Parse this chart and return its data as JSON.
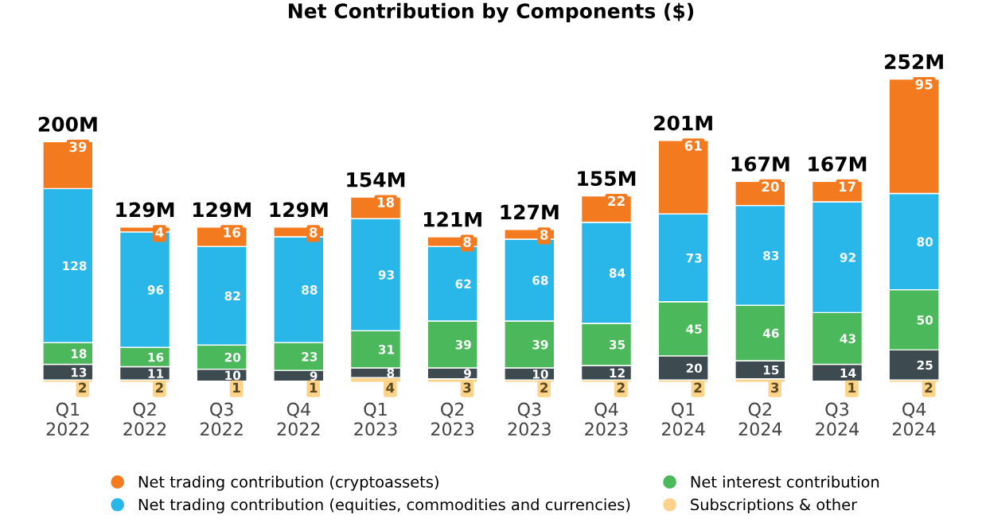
{
  "chart_data": {
    "type": "bar",
    "title": "Net Contribution by Components ($)",
    "categories": [
      "Q1\n2022",
      "Q2\n2022",
      "Q3\n2022",
      "Q4\n2022",
      "Q1\n2023",
      "Q2\n2023",
      "Q3\n2023",
      "Q4\n2023",
      "Q1\n2024",
      "Q2\n2024",
      "Q3\n2024",
      "Q4\n2024"
    ],
    "stacked": true,
    "data_labels": true,
    "legend": "bottom",
    "grid": false,
    "tick_labels": "x",
    "series": [
      {
        "name": "Subscriptions & other",
        "color": "#fdd38a",
        "values": [
          2,
          2,
          1,
          1,
          4,
          3,
          2,
          2,
          2,
          3,
          1,
          2
        ]
      },
      {
        "color": "#3d4a50",
        "values": [
          13,
          11,
          10,
          9,
          8,
          9,
          10,
          12,
          20,
          15,
          14,
          25
        ]
      },
      {
        "name": "Net interest contribution",
        "color": "#4cb85c",
        "values": [
          18,
          16,
          20,
          23,
          31,
          39,
          39,
          35,
          45,
          46,
          43,
          50
        ]
      },
      {
        "name": "Net trading contribution (equities, commodities and currencies)",
        "color": "#29b6e8",
        "values": [
          128,
          96,
          82,
          88,
          93,
          62,
          68,
          84,
          73,
          83,
          92,
          80
        ]
      },
      {
        "name": "Net trading contribution (cryptoassets)",
        "color": "#f47a20",
        "values": [
          39,
          4,
          16,
          8,
          18,
          8,
          8,
          22,
          61,
          20,
          17,
          95
        ]
      }
    ],
    "totals": [
      "200M",
      "129M",
      "129M",
      "129M",
      "154M",
      "121M",
      "127M",
      "155M",
      "201M",
      "167M",
      "167M",
      "252M"
    ]
  }
}
